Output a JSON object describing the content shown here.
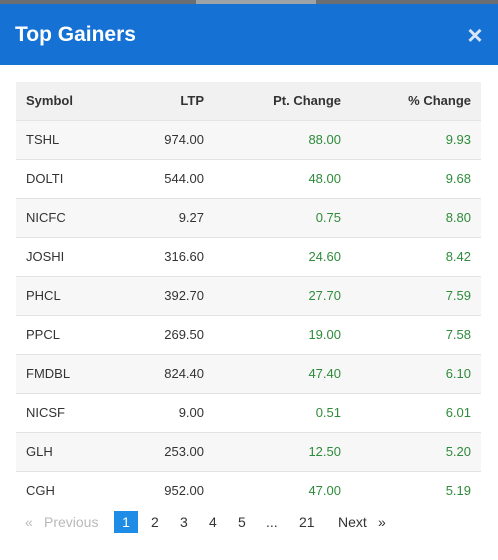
{
  "modal": {
    "title": "Top Gainers",
    "close_label": "×"
  },
  "table": {
    "headers": {
      "symbol": "Symbol",
      "ltp": "LTP",
      "pt_change": "Pt. Change",
      "pct_change": "% Change"
    },
    "rows": [
      {
        "symbol": "TSHL",
        "ltp": "974.00",
        "pt_change": "88.00",
        "pct_change": "9.93"
      },
      {
        "symbol": "DOLTI",
        "ltp": "544.00",
        "pt_change": "48.00",
        "pct_change": "9.68"
      },
      {
        "symbol": "NICFC",
        "ltp": "9.27",
        "pt_change": "0.75",
        "pct_change": "8.80"
      },
      {
        "symbol": "JOSHI",
        "ltp": "316.60",
        "pt_change": "24.60",
        "pct_change": "8.42"
      },
      {
        "symbol": "PHCL",
        "ltp": "392.70",
        "pt_change": "27.70",
        "pct_change": "7.59"
      },
      {
        "symbol": "PPCL",
        "ltp": "269.50",
        "pt_change": "19.00",
        "pct_change": "7.58"
      },
      {
        "symbol": "FMDBL",
        "ltp": "824.40",
        "pt_change": "47.40",
        "pct_change": "6.10"
      },
      {
        "symbol": "NICSF",
        "ltp": "9.00",
        "pt_change": "0.51",
        "pct_change": "6.01"
      },
      {
        "symbol": "GLH",
        "ltp": "253.00",
        "pt_change": "12.50",
        "pct_change": "5.20"
      },
      {
        "symbol": "CGH",
        "ltp": "952.00",
        "pt_change": "47.00",
        "pct_change": "5.19"
      }
    ]
  },
  "pagination": {
    "prev_arrow": "«",
    "previous": "Previous",
    "pages": [
      "1",
      "2",
      "3",
      "4",
      "5"
    ],
    "ellipsis": "...",
    "last_page": "21",
    "next": "Next",
    "next_arrow": "»",
    "current": "1"
  },
  "colors": {
    "header_bg": "#1572d4",
    "positive": "#2e8b3a",
    "active_page": "#1f8de6"
  }
}
